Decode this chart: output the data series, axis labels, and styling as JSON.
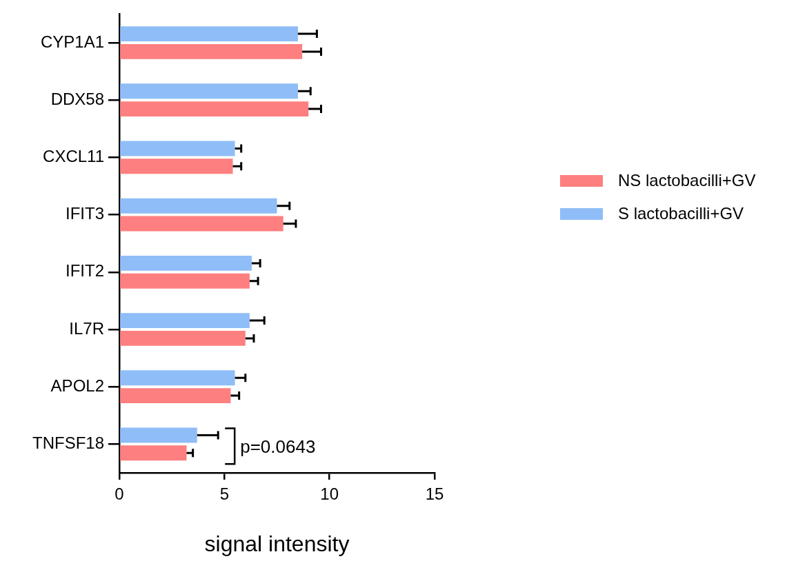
{
  "chart_data": {
    "type": "bar",
    "orientation": "horizontal",
    "xlabel": "signal intensity",
    "categories": [
      "CYP1A1",
      "DDX58",
      "CXCL11",
      "IFIT3",
      "IFIT2",
      "IL7R",
      "APOL2",
      "TNFSF18"
    ],
    "series": [
      {
        "name": "S lactobacilli+GV",
        "color": "#8fbdf7",
        "values": [
          8.5,
          8.5,
          5.5,
          7.5,
          6.3,
          6.2,
          5.5,
          3.7
        ],
        "errors": [
          0.9,
          0.6,
          0.3,
          0.6,
          0.4,
          0.7,
          0.5,
          1.0
        ]
      },
      {
        "name": "NS lactobacilli+GV",
        "color": "#fe7f7f",
        "values": [
          8.7,
          9.0,
          5.4,
          7.8,
          6.2,
          6.0,
          5.3,
          3.2
        ],
        "errors": [
          0.9,
          0.6,
          0.4,
          0.6,
          0.4,
          0.4,
          0.4,
          0.3
        ]
      }
    ],
    "xlim": [
      0,
      15
    ],
    "xticks": [
      0,
      5,
      10,
      15
    ],
    "grid": false,
    "legend": "right",
    "annotations": [
      "p=0.0643"
    ]
  }
}
